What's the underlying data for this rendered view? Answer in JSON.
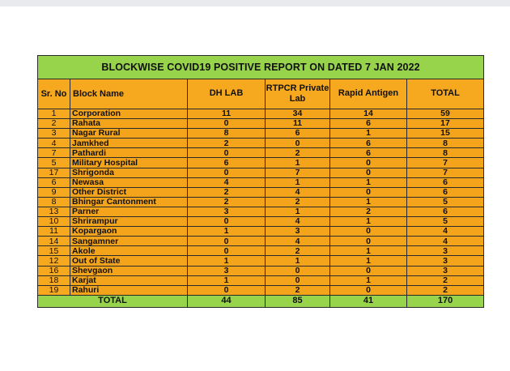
{
  "report": {
    "title": "BLOCKWISE COVID19 POSITIVE REPORT ON DATED 7 JAN 2022",
    "headers": {
      "sr_no": "Sr. No",
      "block_name": "Block Name",
      "dh_lab": "DH LAB",
      "rtpcr": "RTPCR Private Lab",
      "rapid": "Rapid Antigen",
      "total": "TOTAL"
    },
    "rows": [
      {
        "sr": "1",
        "name": "Corporation",
        "dh": "11",
        "rtpcr": "34",
        "rapid": "14",
        "total": "59"
      },
      {
        "sr": "2",
        "name": "Rahata",
        "dh": "0",
        "rtpcr": "11",
        "rapid": "6",
        "total": "17"
      },
      {
        "sr": "3",
        "name": "Nagar Rural",
        "dh": "8",
        "rtpcr": "6",
        "rapid": "1",
        "total": "15"
      },
      {
        "sr": "4",
        "name": "Jamkhed",
        "dh": "2",
        "rtpcr": "0",
        "rapid": "6",
        "total": "8"
      },
      {
        "sr": "7",
        "name": "Pathardi",
        "dh": "0",
        "rtpcr": "2",
        "rapid": "6",
        "total": "8"
      },
      {
        "sr": "5",
        "name": "Military Hospital",
        "dh": "6",
        "rtpcr": "1",
        "rapid": "0",
        "total": "7"
      },
      {
        "sr": "17",
        "name": "Shrigonda",
        "dh": "0",
        "rtpcr": "7",
        "rapid": "0",
        "total": "7"
      },
      {
        "sr": "6",
        "name": "Newasa",
        "dh": "4",
        "rtpcr": "1",
        "rapid": "1",
        "total": "6"
      },
      {
        "sr": "9",
        "name": "Other District",
        "dh": "2",
        "rtpcr": "4",
        "rapid": "0",
        "total": "6"
      },
      {
        "sr": "8",
        "name": "Bhingar Cantonment",
        "dh": "2",
        "rtpcr": "2",
        "rapid": "1",
        "total": "5"
      },
      {
        "sr": "13",
        "name": "Parner",
        "dh": "3",
        "rtpcr": "1",
        "rapid": "2",
        "total": "6"
      },
      {
        "sr": "10",
        "name": "Shrirampur",
        "dh": "0",
        "rtpcr": "4",
        "rapid": "1",
        "total": "5"
      },
      {
        "sr": "11",
        "name": "Kopargaon",
        "dh": "1",
        "rtpcr": "3",
        "rapid": "0",
        "total": "4"
      },
      {
        "sr": "14",
        "name": "Sangamner",
        "dh": "0",
        "rtpcr": "4",
        "rapid": "0",
        "total": "4"
      },
      {
        "sr": "15",
        "name": "Akole",
        "dh": "0",
        "rtpcr": "2",
        "rapid": "1",
        "total": "3"
      },
      {
        "sr": "12",
        "name": "Out of State",
        "dh": "1",
        "rtpcr": "1",
        "rapid": "1",
        "total": "3"
      },
      {
        "sr": "16",
        "name": "Shevgaon",
        "dh": "3",
        "rtpcr": "0",
        "rapid": "0",
        "total": "3"
      },
      {
        "sr": "18",
        "name": "Karjat",
        "dh": "1",
        "rtpcr": "0",
        "rapid": "1",
        "total": "2"
      },
      {
        "sr": "19",
        "name": "Rahuri",
        "dh": "0",
        "rtpcr": "2",
        "rapid": "0",
        "total": "2"
      }
    ],
    "totals": {
      "label": "TOTAL",
      "dh": "44",
      "rtpcr": "85",
      "rapid": "41",
      "total": "170"
    }
  },
  "colors": {
    "title_bg": "#97d34b",
    "row_bg": "#f6a81f",
    "total_bg": "#97d34b"
  }
}
